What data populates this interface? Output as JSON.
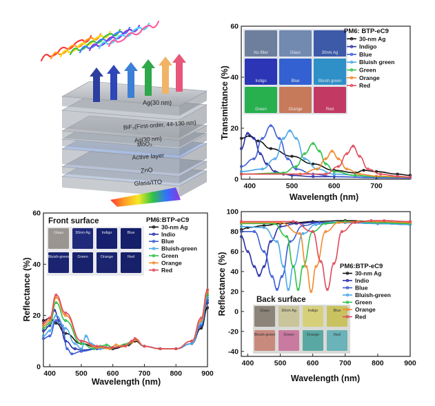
{
  "stack": {
    "layers": [
      "Ag(30 nm)",
      "BiF₃(First-order, 44-130 nm)",
      "Ag(30 nm)",
      "MoO₃",
      "Active layer",
      "ZnO",
      "Glass/ITO"
    ],
    "arrow_colors": [
      "#2c3f9e",
      "#2f46b8",
      "#3b7fd6",
      "#2ea84a",
      "#f2b366",
      "#e8567a"
    ]
  },
  "chart_data": [
    {
      "type": "line",
      "title": "",
      "xlabel": "Wavelength (nm)",
      "ylabel": "Transmittance (%)",
      "xlim": [
        380,
        780
      ],
      "ylim": [
        0,
        60
      ],
      "xticks": [
        "400",
        "500",
        "600",
        "700"
      ],
      "yticks": [
        "0",
        "20",
        "40",
        "60"
      ],
      "legend_title": "PM6: BTP-eC9",
      "legend_position": "top-right",
      "thumbnails": [
        {
          "label": "No filter",
          "color": "#6d7f9c"
        },
        {
          "label": "Glass",
          "color": "#7289b0"
        },
        {
          "label": "30nm Ag",
          "color": "#3d5aa8"
        },
        {
          "label": "Indigo",
          "color": "#2b35b5"
        },
        {
          "label": "Blue",
          "color": "#3461d1"
        },
        {
          "label": "Bluish green",
          "color": "#2f8fc7"
        },
        {
          "label": "Green",
          "color": "#28b04f"
        },
        {
          "label": "Orange",
          "color": "#c77a5a"
        },
        {
          "label": "Red",
          "color": "#c23a63"
        }
      ],
      "series": [
        {
          "name": "30-nm Ag",
          "color": "#111111",
          "x": [
            380,
            400,
            420,
            450,
            500,
            550,
            600,
            650,
            670,
            700,
            750,
            780
          ],
          "y": [
            16,
            17,
            15,
            12,
            9,
            6,
            3.5,
            2.5,
            3.5,
            3,
            2,
            1.5
          ]
        },
        {
          "name": "Indigo",
          "color": "#2a2fa8",
          "x": [
            380,
            395,
            410,
            425,
            440,
            460,
            480,
            500,
            550,
            600,
            700,
            780
          ],
          "y": [
            12,
            18,
            16,
            10,
            6,
            3,
            2,
            1.5,
            1,
            1,
            0.6,
            0.5
          ]
        },
        {
          "name": "Blue",
          "color": "#3a5bd6",
          "x": [
            380,
            410,
            430,
            450,
            470,
            490,
            510,
            550,
            600,
            700,
            780
          ],
          "y": [
            5,
            8,
            16,
            21,
            16,
            8,
            4,
            2,
            1,
            0.6,
            0.5
          ]
        },
        {
          "name": "Bluish green",
          "color": "#4aa8e8",
          "x": [
            380,
            430,
            460,
            480,
            495,
            510,
            530,
            560,
            600,
            700,
            780
          ],
          "y": [
            3,
            4,
            8,
            16,
            19,
            16,
            8,
            4,
            2,
            1,
            0.8
          ]
        },
        {
          "name": "Green",
          "color": "#2fbf4a",
          "x": [
            380,
            480,
            510,
            530,
            550,
            565,
            580,
            600,
            650,
            700,
            780
          ],
          "y": [
            2,
            2.5,
            5,
            10,
            14,
            11,
            6,
            3,
            1.5,
            1,
            0.8
          ]
        },
        {
          "name": "Orange",
          "color": "#f08a2c",
          "x": [
            380,
            520,
            560,
            580,
            595,
            610,
            630,
            660,
            700,
            780
          ],
          "y": [
            2,
            2,
            4,
            8,
            11,
            8,
            4,
            2,
            1.2,
            0.8
          ]
        },
        {
          "name": "Red",
          "color": "#e04a5a",
          "x": [
            380,
            580,
            610,
            630,
            645,
            660,
            680,
            710,
            750,
            780
          ],
          "y": [
            2,
            2,
            5,
            10,
            13,
            9,
            4,
            2,
            1.2,
            0.8
          ]
        }
      ]
    },
    {
      "type": "line",
      "title": "Front surface",
      "xlabel": "Wavelength (nm)",
      "ylabel": "Reflectance (%)",
      "xlim": [
        380,
        900
      ],
      "ylim": [
        0,
        60
      ],
      "xticks": [
        "400",
        "500",
        "600",
        "700",
        "800",
        "900"
      ],
      "yticks": [
        "0",
        "20",
        "40",
        "60"
      ],
      "legend_title": "PM6:BTP-eC9",
      "legend_position": "top-right",
      "thumbnails": [
        {
          "label": "Glass",
          "color": "#9a9590"
        },
        {
          "label": "30nm Ag",
          "color": "#1f2a7a"
        },
        {
          "label": "Indigo",
          "color": "#16206e"
        },
        {
          "label": "Blue",
          "color": "#151f6a"
        },
        {
          "label": "Bluish-green",
          "color": "#1a2470"
        },
        {
          "label": "Green",
          "color": "#18226c"
        },
        {
          "label": "Orange",
          "color": "#1a246f"
        },
        {
          "label": "Red",
          "color": "#172169"
        }
      ],
      "series": [
        {
          "name": "30-nm Ag",
          "color": "#111111",
          "x": [
            380,
            400,
            420,
            450,
            500,
            550,
            600,
            650,
            670,
            700,
            750,
            800,
            850,
            880,
            900
          ],
          "y": [
            18,
            19,
            17,
            13,
            9,
            7.5,
            7,
            8.5,
            10,
            8,
            7,
            7,
            9,
            15,
            23
          ]
        },
        {
          "name": "Indio",
          "color": "#2a2fa8",
          "x": [
            380,
            400,
            415,
            430,
            450,
            480,
            500,
            550,
            600,
            650,
            670,
            700,
            750,
            800,
            850,
            880,
            900
          ],
          "y": [
            14,
            16,
            22,
            18,
            10,
            7,
            6.5,
            7,
            7.5,
            9,
            10.5,
            8,
            7,
            7,
            9,
            16,
            25
          ]
        },
        {
          "name": "Blue",
          "color": "#3a5bd6",
          "x": [
            380,
            400,
            420,
            440,
            455,
            470,
            500,
            550,
            600,
            650,
            670,
            700,
            750,
            800,
            850,
            880,
            900
          ],
          "y": [
            11,
            12,
            18,
            16,
            7,
            5,
            6,
            7,
            7.5,
            9,
            10.5,
            8,
            7,
            7,
            9,
            16,
            26
          ]
        },
        {
          "name": "Bluish-green",
          "color": "#4aa8e8",
          "x": [
            380,
            400,
            420,
            450,
            480,
            500,
            515,
            530,
            560,
            600,
            650,
            670,
            700,
            750,
            800,
            850,
            880,
            900
          ],
          "y": [
            12,
            14,
            20,
            15,
            9,
            7,
            12,
            9,
            7,
            7.5,
            9,
            10.5,
            8,
            7,
            7,
            9,
            17,
            27
          ]
        },
        {
          "name": "Green",
          "color": "#2fbf4a",
          "x": [
            380,
            400,
            420,
            450,
            500,
            540,
            560,
            580,
            600,
            650,
            670,
            700,
            750,
            800,
            850,
            880,
            900
          ],
          "y": [
            15,
            17,
            25,
            18,
            9,
            7,
            8,
            8.5,
            7.5,
            9,
            10.5,
            8,
            7,
            7,
            10,
            18,
            28
          ]
        },
        {
          "name": "Orange",
          "color": "#f08a2c",
          "x": [
            380,
            400,
            420,
            450,
            500,
            550,
            590,
            610,
            630,
            660,
            670,
            700,
            750,
            800,
            850,
            880,
            900
          ],
          "y": [
            16,
            18,
            27,
            20,
            10,
            7.5,
            7,
            8.5,
            8,
            9.5,
            10.5,
            8,
            7,
            7,
            10,
            18,
            29
          ]
        },
        {
          "name": "Red",
          "color": "#e04a5a",
          "x": [
            380,
            400,
            420,
            450,
            500,
            550,
            600,
            640,
            660,
            670,
            700,
            750,
            800,
            850,
            880,
            900
          ],
          "y": [
            17,
            19,
            28,
            21,
            10,
            8,
            7.5,
            8,
            10,
            11,
            8,
            7,
            7,
            10,
            19,
            30
          ]
        }
      ]
    },
    {
      "type": "line",
      "title": "Back surface",
      "xlabel": "Wavelength (nm)",
      "ylabel": "Reflectance (%)",
      "xlim": [
        380,
        900
      ],
      "ylim": [
        -45,
        100
      ],
      "xticks": [
        "400",
        "500",
        "600",
        "700",
        "800",
        "900"
      ],
      "yticks": [
        "-40",
        "-20",
        "0",
        "20",
        "40",
        "60",
        "80",
        "100"
      ],
      "legend_title": "PM6:BTP-eC9",
      "legend_position": "center-right",
      "thumbnails": [
        {
          "label": "Glass",
          "color": "#8c8478"
        },
        {
          "label": "30nm Ag",
          "color": "#c9c49a"
        },
        {
          "label": "Indigo",
          "color": "#d6d07a"
        },
        {
          "label": "Blue",
          "color": "#c9c260"
        },
        {
          "label": "Bluish-green",
          "color": "#c98a7e"
        },
        {
          "label": "Green",
          "color": "#c97aa0"
        },
        {
          "label": "Orange",
          "color": "#5aa8a3"
        },
        {
          "label": "Red",
          "color": "#6ab3b8"
        }
      ],
      "series": [
        {
          "name": "30-nm Ag",
          "color": "#111111",
          "x": [
            380,
            400,
            450,
            500,
            550,
            600,
            700,
            800,
            900
          ],
          "y": [
            82,
            84,
            86,
            88,
            89,
            90,
            91,
            90,
            89
          ]
        },
        {
          "name": "Indio",
          "color": "#2a2fa8",
          "x": [
            380,
            400,
            420,
            435,
            450,
            470,
            500,
            550,
            600,
            700,
            800,
            900
          ],
          "y": [
            75,
            60,
            45,
            36,
            45,
            70,
            85,
            88,
            89,
            89,
            88,
            87
          ]
        },
        {
          "name": "Blue",
          "color": "#3a5bd6",
          "x": [
            380,
            420,
            450,
            475,
            490,
            505,
            530,
            570,
            620,
            700,
            800,
            900
          ],
          "y": [
            80,
            80,
            60,
            35,
            22,
            35,
            70,
            86,
            89,
            89,
            88,
            87
          ]
        },
        {
          "name": "Bluish-green",
          "color": "#4aa8e8",
          "x": [
            380,
            450,
            490,
            510,
            525,
            540,
            570,
            610,
            660,
            700,
            800,
            900
          ],
          "y": [
            85,
            84,
            70,
            45,
            22,
            45,
            78,
            87,
            89,
            89,
            88,
            87
          ]
        },
        {
          "name": "Green",
          "color": "#2fbf4a",
          "x": [
            380,
            480,
            520,
            540,
            555,
            570,
            600,
            640,
            700,
            800,
            900
          ],
          "y": [
            88,
            88,
            75,
            45,
            22,
            45,
            80,
            88,
            90,
            89,
            88
          ]
        },
        {
          "name": "Orange",
          "color": "#f08a2c",
          "x": [
            380,
            500,
            560,
            580,
            595,
            610,
            640,
            680,
            740,
            800,
            900
          ],
          "y": [
            89,
            89,
            78,
            45,
            20,
            45,
            80,
            89,
            90,
            90,
            89
          ]
        },
        {
          "name": "Red",
          "color": "#e04a5a",
          "x": [
            380,
            540,
            600,
            625,
            645,
            665,
            690,
            730,
            780,
            820,
            900
          ],
          "y": [
            90,
            90,
            80,
            50,
            22,
            48,
            80,
            89,
            91,
            91,
            90
          ]
        }
      ]
    }
  ]
}
